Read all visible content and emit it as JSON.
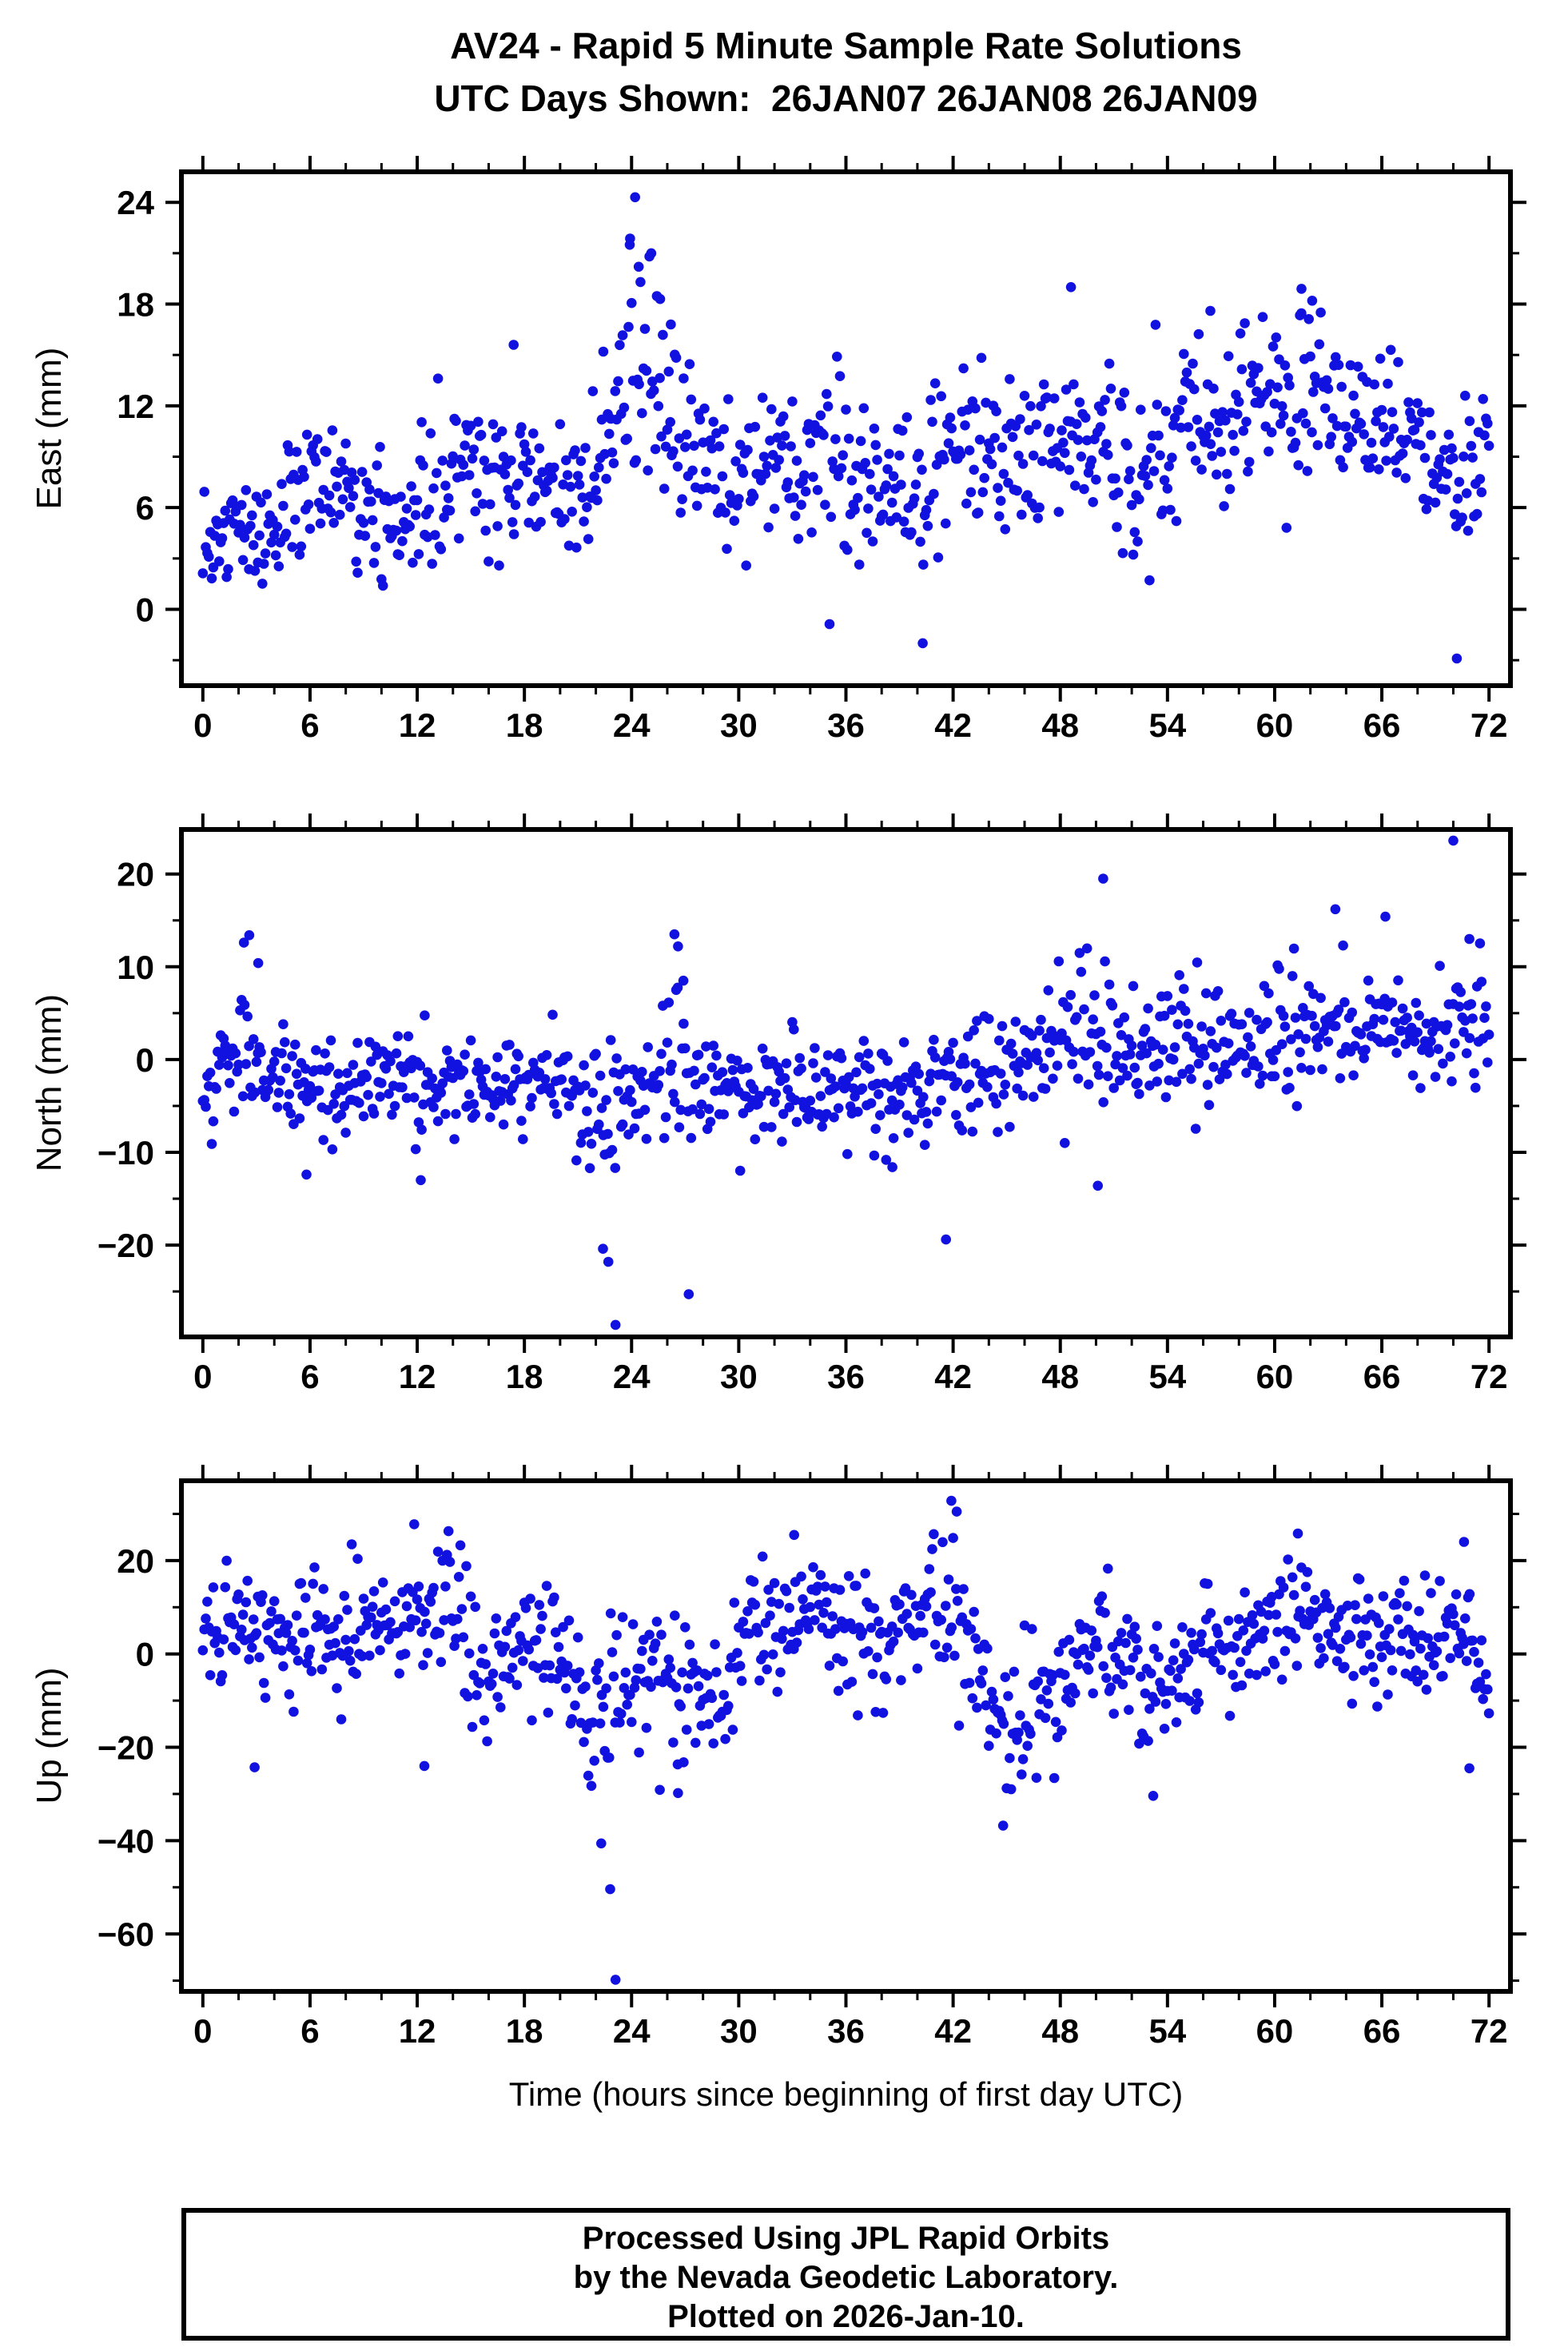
{
  "header": {
    "title_line1": "AV24 - Rapid 5 Minute Sample Rate Solutions",
    "title_line2": "UTC Days Shown:  26JAN07 26JAN08 26JAN09"
  },
  "footer": {
    "caption_line1": "Processed Using JPL Rapid Orbits",
    "caption_line2": "by the Nevada Geodetic Laboratory.",
    "caption_line3": "Plotted on 2026-Jan-10."
  },
  "chart_data": {
    "type": "scatter",
    "station": "AV24",
    "x_label": "Time (hours since beginning of first day UTC)",
    "x_range": [
      -1.2,
      73.2
    ],
    "x_major_ticks": [
      0,
      6,
      12,
      18,
      24,
      30,
      36,
      42,
      48,
      54,
      60,
      66,
      72
    ],
    "x_minor_step": 2,
    "sample_interval_hours": 0.08333,
    "n_samples": 865,
    "marker_color": "#1212e0",
    "marker_radius_px": 6.3,
    "frame_color": "#000000",
    "grid": "off",
    "legend": "none",
    "seed": 20260110,
    "subplots": [
      {
        "name": "east",
        "ylabel": "East (mm)",
        "y_range": [
          -4.5,
          25.8
        ],
        "y_major_ticks": [
          0,
          6,
          12,
          18,
          24
        ],
        "y_major_labels": [
          "0",
          "6",
          "12",
          "18",
          "24"
        ],
        "y_minor_step": 3,
        "envelope": [
          [
            0,
            2.5,
            2.0
          ],
          [
            2,
            4.5,
            2.2
          ],
          [
            4,
            4.5,
            2.0
          ],
          [
            6,
            8,
            2.2
          ],
          [
            8,
            7.5,
            2.2
          ],
          [
            10,
            5.5,
            2.0
          ],
          [
            12,
            5.5,
            2.0
          ],
          [
            14,
            8,
            2.2
          ],
          [
            16,
            8.5,
            2.2
          ],
          [
            18,
            8.5,
            2.5
          ],
          [
            20,
            6,
            2.0
          ],
          [
            22,
            8,
            2.5
          ],
          [
            24,
            14.5,
            4.5
          ],
          [
            26,
            12,
            3.5
          ],
          [
            28,
            8,
            2.2
          ],
          [
            30,
            8,
            2.0
          ],
          [
            32,
            9,
            2.2
          ],
          [
            34,
            9,
            2.5
          ],
          [
            36,
            8,
            2.5
          ],
          [
            38,
            7,
            2.5
          ],
          [
            40,
            6,
            2.5
          ],
          [
            42,
            10,
            2.5
          ],
          [
            44,
            9,
            2.0
          ],
          [
            46,
            9,
            2.5
          ],
          [
            48,
            10,
            2.5
          ],
          [
            50,
            10,
            2.0
          ],
          [
            52,
            8.5,
            2.5
          ],
          [
            54,
            10,
            2.2
          ],
          [
            56,
            12,
            2.5
          ],
          [
            58,
            12,
            2.5
          ],
          [
            60,
            12.5,
            2.8
          ],
          [
            62,
            13,
            2.8
          ],
          [
            64,
            11,
            2.5
          ],
          [
            66,
            11.5,
            2.2
          ],
          [
            68,
            9,
            1.8
          ],
          [
            70,
            7,
            1.8
          ],
          [
            72,
            9.5,
            2.5
          ]
        ],
        "outliers": [
          [
            17.4,
            15.6
          ],
          [
            23.9,
            21.5
          ],
          [
            24.2,
            24.3
          ],
          [
            24.4,
            20.2
          ],
          [
            25.1,
            21.0
          ],
          [
            25.6,
            18.3
          ],
          [
            26.2,
            16.8
          ],
          [
            40.3,
            -2.0
          ],
          [
            48.6,
            19.0
          ],
          [
            56.4,
            17.6
          ],
          [
            61.5,
            18.9
          ],
          [
            62.1,
            18.2
          ],
          [
            70.2,
            -2.9
          ],
          [
            70.3,
            -4.6
          ]
        ]
      },
      {
        "name": "north",
        "ylabel": "North (mm)",
        "y_range": [
          -29.9,
          24.8
        ],
        "y_major_ticks": [
          -20,
          -10,
          0,
          10,
          20
        ],
        "y_major_labels": [
          "−20",
          "−10",
          "0",
          "10",
          "20"
        ],
        "y_minor_step": 5,
        "envelope": [
          [
            0,
            -3,
            2.5
          ],
          [
            2,
            1,
            4.5
          ],
          [
            4,
            -2,
            2.8
          ],
          [
            6,
            -2.5,
            3.0
          ],
          [
            8,
            -3,
            2.5
          ],
          [
            10,
            -3,
            2.8
          ],
          [
            12,
            -3,
            3.0
          ],
          [
            14,
            -2,
            2.5
          ],
          [
            16,
            -3,
            2.8
          ],
          [
            18,
            -3,
            3.0
          ],
          [
            20,
            -3,
            2.5
          ],
          [
            22,
            -5,
            4.0
          ],
          [
            24,
            -4,
            2.8
          ],
          [
            26,
            0,
            4.5
          ],
          [
            28,
            -3,
            2.8
          ],
          [
            30,
            -3,
            3.0
          ],
          [
            32,
            -3,
            2.8
          ],
          [
            34,
            -3.5,
            3.0
          ],
          [
            36,
            -2.5,
            3.0
          ],
          [
            38,
            -3.5,
            3.2
          ],
          [
            40,
            -3.5,
            3.0
          ],
          [
            42,
            -2,
            3.0
          ],
          [
            44,
            -1.5,
            3.0
          ],
          [
            46,
            0,
            3.2
          ],
          [
            48,
            1.5,
            3.8
          ],
          [
            50,
            2,
            4.0
          ],
          [
            52,
            1,
            3.0
          ],
          [
            54,
            1,
            3.2
          ],
          [
            56,
            1.5,
            3.5
          ],
          [
            58,
            2,
            3.0
          ],
          [
            60,
            3.5,
            4.0
          ],
          [
            62,
            3,
            3.2
          ],
          [
            64,
            2.5,
            3.2
          ],
          [
            66,
            2.5,
            3.5
          ],
          [
            68,
            2,
            3.0
          ],
          [
            70,
            3,
            3.5
          ],
          [
            72,
            2.5,
            2.8
          ]
        ],
        "outliers": [
          [
            2.3,
            12.6
          ],
          [
            2.6,
            13.4
          ],
          [
            3.1,
            10.4
          ],
          [
            5.8,
            -12.4
          ],
          [
            12.2,
            -13.0
          ],
          [
            22.4,
            -20.4
          ],
          [
            22.7,
            -21.8
          ],
          [
            23.1,
            -28.6
          ],
          [
            26.4,
            13.5
          ],
          [
            26.6,
            12.2
          ],
          [
            26.9,
            8.5
          ],
          [
            27.2,
            -25.3
          ],
          [
            38.6,
            -11.6
          ],
          [
            41.6,
            -19.4
          ],
          [
            50.1,
            -13.6
          ],
          [
            50.4,
            19.5
          ],
          [
            63.4,
            16.2
          ],
          [
            66.2,
            15.4
          ],
          [
            70.0,
            23.6
          ],
          [
            70.9,
            13.0
          ]
        ]
      },
      {
        "name": "up",
        "ylabel": "Up (mm)",
        "y_range": [
          -72.3,
          37.1
        ],
        "y_major_ticks": [
          -60,
          -40,
          -20,
          0,
          20
        ],
        "y_major_labels": [
          "−60",
          "−40",
          "−20",
          "0",
          "20"
        ],
        "y_minor_step": 10,
        "envelope": [
          [
            0,
            5,
            5
          ],
          [
            2,
            7,
            7
          ],
          [
            4,
            2,
            7
          ],
          [
            6,
            8,
            7
          ],
          [
            8,
            4,
            8
          ],
          [
            10,
            8,
            6
          ],
          [
            12,
            8,
            7
          ],
          [
            14,
            9,
            8
          ],
          [
            16,
            -8,
            7
          ],
          [
            18,
            4,
            7
          ],
          [
            20,
            -2,
            8
          ],
          [
            22,
            -15,
            10
          ],
          [
            24,
            -5,
            7
          ],
          [
            26,
            -4,
            8
          ],
          [
            28,
            -12,
            8
          ],
          [
            30,
            0,
            6
          ],
          [
            32,
            8,
            7
          ],
          [
            34,
            7,
            7
          ],
          [
            36,
            3,
            7
          ],
          [
            38,
            2,
            7
          ],
          [
            40,
            7,
            7
          ],
          [
            42,
            10,
            8
          ],
          [
            44,
            -10,
            9
          ],
          [
            46,
            -14,
            7
          ],
          [
            48,
            -8,
            7
          ],
          [
            50,
            3,
            8
          ],
          [
            52,
            -5,
            8
          ],
          [
            54,
            -9,
            7
          ],
          [
            56,
            3,
            7
          ],
          [
            58,
            1,
            7
          ],
          [
            60,
            8,
            7
          ],
          [
            62,
            8,
            7
          ],
          [
            64,
            0,
            7
          ],
          [
            66,
            4,
            7
          ],
          [
            68,
            2,
            7
          ],
          [
            70,
            3,
            8
          ],
          [
            72,
            -4,
            7
          ]
        ],
        "outliers": [
          [
            2.9,
            -24.3
          ],
          [
            12.4,
            -24.0
          ],
          [
            22.3,
            -40.6
          ],
          [
            22.8,
            -50.4
          ],
          [
            23.1,
            -69.8
          ],
          [
            26.6,
            -29.8
          ],
          [
            33.1,
            25.5
          ],
          [
            41.9,
            32.8
          ],
          [
            42.2,
            30.5
          ],
          [
            44.8,
            -36.8
          ],
          [
            53.2,
            -30.4
          ],
          [
            61.3,
            25.8
          ],
          [
            70.6,
            24.0
          ],
          [
            70.9,
            -24.5
          ]
        ]
      }
    ]
  }
}
